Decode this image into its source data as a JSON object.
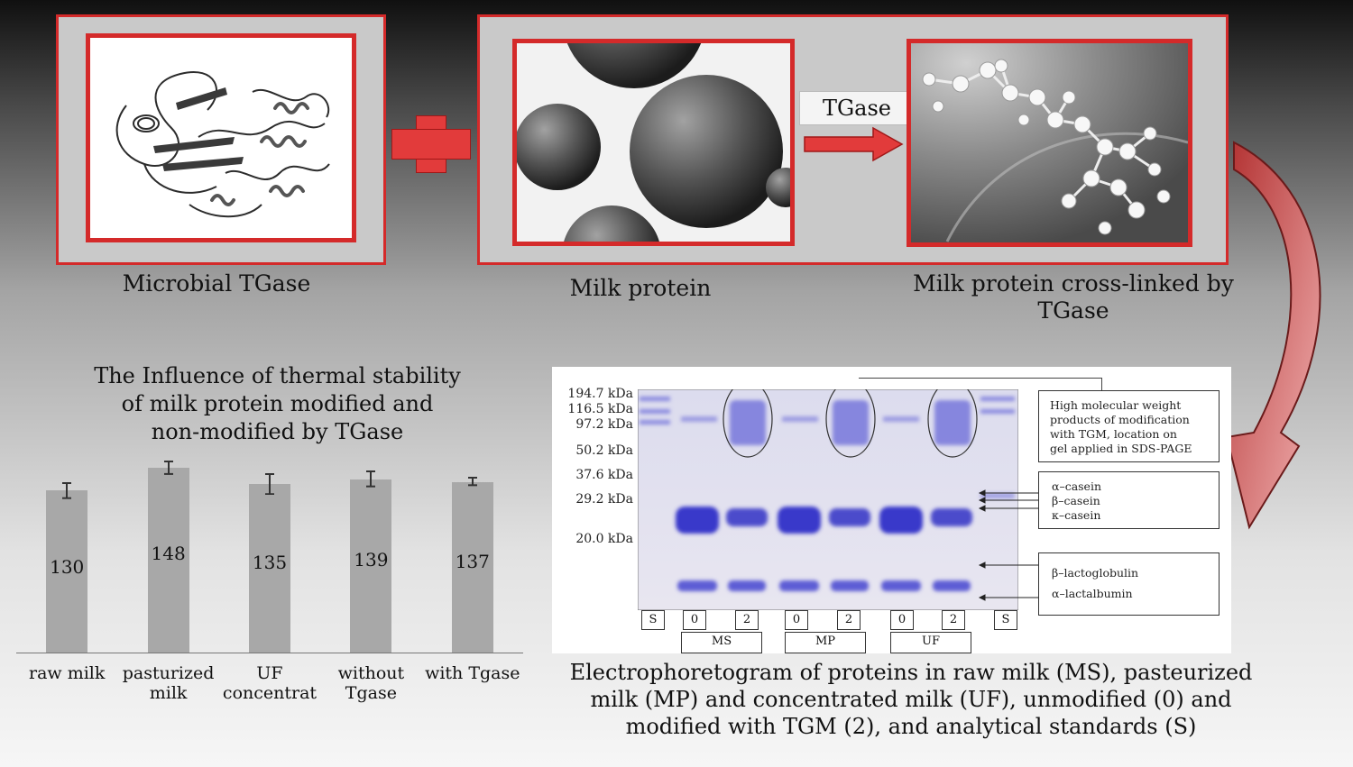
{
  "top": {
    "tgase_label": "TGase",
    "captions": {
      "microbial": "Microbial TGase",
      "milk_protein": "Milk protein",
      "crosslinked_line1": "Milk protein cross-linked by",
      "crosslinked_line2": "TGase"
    }
  },
  "chart_data": {
    "type": "bar",
    "title_lines": [
      "The Influence of thermal stability",
      "of milk protein modified and",
      "non-modified by TGase"
    ],
    "categories": [
      [
        "raw milk"
      ],
      [
        "pasturized",
        "milk"
      ],
      [
        "UF",
        "concentrat"
      ],
      [
        "without",
        "Tgase"
      ],
      [
        "with Tgase"
      ]
    ],
    "values": [
      130,
      148,
      135,
      139,
      137
    ],
    "value_labels": [
      "130",
      "148",
      "135",
      "139",
      "137"
    ],
    "error_bars": [
      6,
      5,
      8,
      6,
      3
    ],
    "ylim": [
      0,
      160
    ],
    "bar_color": "#a8a8a8",
    "grid": false
  },
  "gel": {
    "kda_markers": [
      "194.7 kDa",
      "116.5 kDa",
      "97.2 kDa",
      "50.2 kDa",
      "37.6 kDa",
      "29.2 kDa",
      "20.0 kDa"
    ],
    "lane_labels": [
      "S",
      "0",
      "2",
      "0",
      "2",
      "0",
      "2",
      "S"
    ],
    "group_labels": [
      "MS",
      "MP",
      "UF"
    ],
    "legend_hmw": [
      "High molecular weight",
      "products of modification",
      "with TGM, location on",
      "gel applied in SDS-PAGE"
    ],
    "legend_casein": [
      "α–casein",
      "β–casein",
      "κ–casein"
    ],
    "legend_whey": [
      "β–lactoglobulin",
      "α–lactalbumin"
    ],
    "caption_lines": [
      "Electrophoretogram of proteins in raw milk (MS), pasteurized",
      "milk (MP) and concentrated milk (UF), unmodified (0) and",
      "modified with TGM (2), and analytical standards (S)"
    ]
  }
}
